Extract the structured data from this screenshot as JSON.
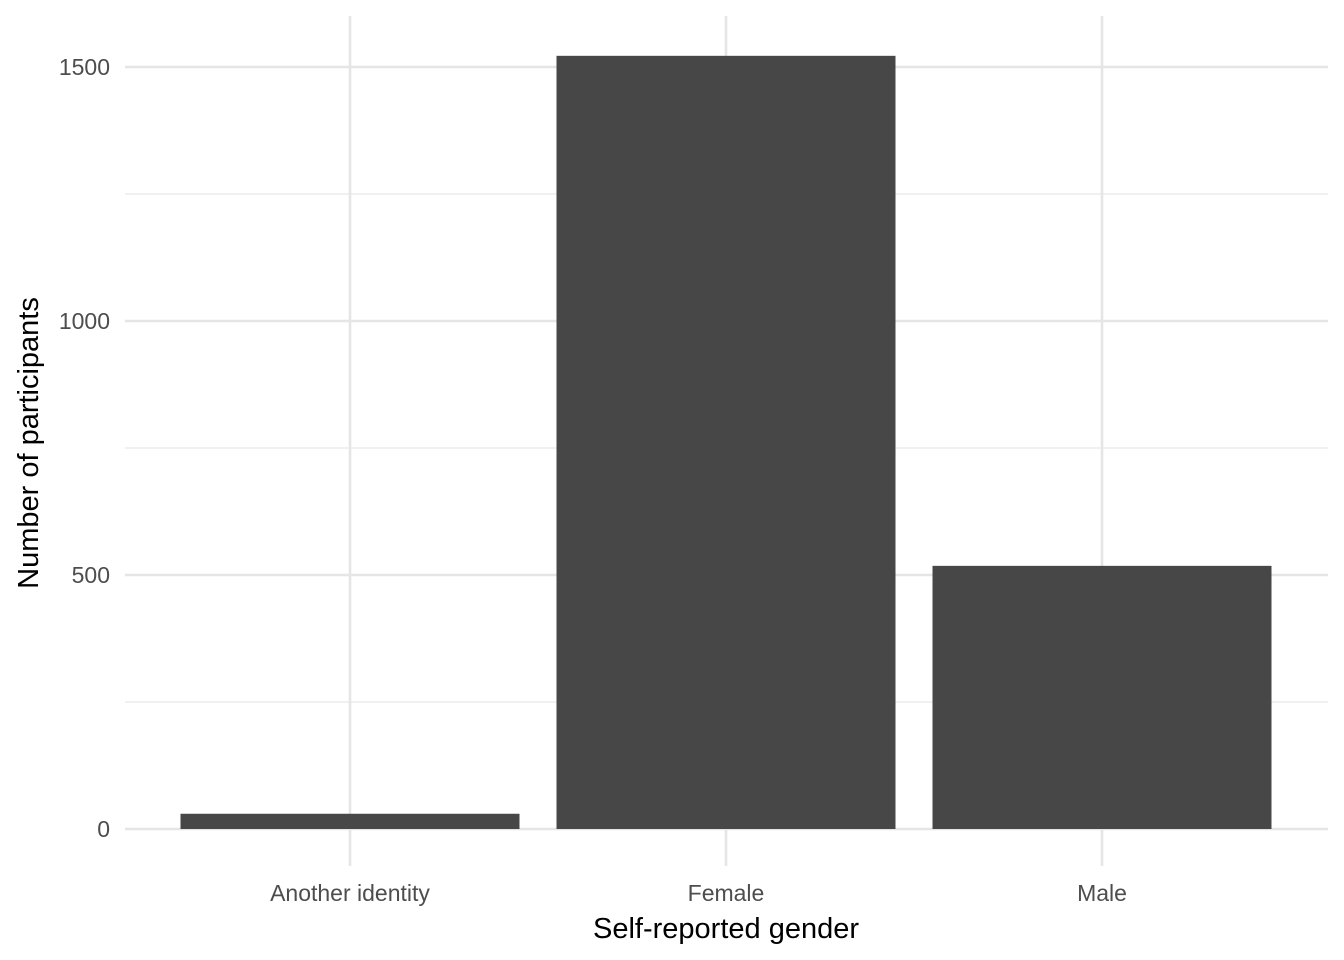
{
  "chart_data": {
    "type": "bar",
    "title": "",
    "xlabel": "Self-reported gender",
    "ylabel": "Number of participants",
    "categories": [
      "Another identity",
      "Female",
      "Male"
    ],
    "values": [
      30,
      1522,
      518
    ],
    "ylim": [
      0,
      1570
    ],
    "yticks": [
      0,
      500,
      1000,
      1500
    ],
    "ytick_labels": [
      "0",
      "500",
      "1000",
      "1500"
    ],
    "grid": true,
    "bar_color": "#474747",
    "grid_color": "#e5e5e5"
  }
}
